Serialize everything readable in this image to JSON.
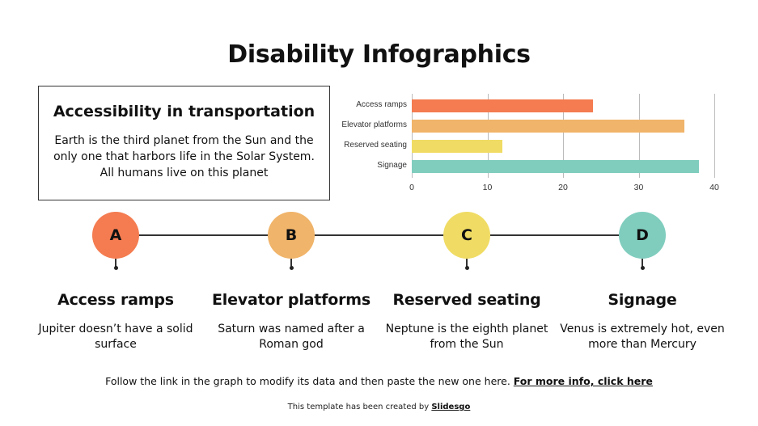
{
  "title": "Disability Infographics",
  "info_box": {
    "title": "Accessibility in transportation",
    "text": "Earth is the third planet from the Sun and the only one that harbors life in the Solar System. All humans live on this planet"
  },
  "chart_data": {
    "type": "bar",
    "orientation": "horizontal",
    "title": "",
    "xlabel": "",
    "ylabel": "",
    "categories": [
      "Access ramps",
      "Elevator platforms",
      "Reserved seating",
      "Signage"
    ],
    "values": [
      24,
      36,
      12,
      38
    ],
    "colors": [
      "#F47C50",
      "#F0B46A",
      "#F0DC64",
      "#80CDBE"
    ],
    "xlim": [
      0,
      40
    ],
    "ticks": [
      "0",
      "10",
      "20",
      "30",
      "40"
    ],
    "grid": true,
    "legend": "none"
  },
  "steps": [
    {
      "letter": "A",
      "title": "Access ramps",
      "text": "Jupiter doesn’t have a solid surface",
      "color": "#F47C50"
    },
    {
      "letter": "B",
      "title": "Elevator platforms",
      "text": "Saturn was named after a Roman god",
      "color": "#F0B46A"
    },
    {
      "letter": "C",
      "title": "Reserved seating",
      "text": "Neptune is the eighth planet from the Sun",
      "color": "#F0DC64"
    },
    {
      "letter": "D",
      "title": "Signage",
      "text": "Venus is extremely hot, even more than Mercury",
      "color": "#80CDBE"
    }
  ],
  "footer": {
    "note": "Follow the link in the graph to modify its data and then paste the new one here. ",
    "link": "For more info, click here",
    "credit_prefix": "This template has been created by ",
    "credit_link": "Slidesgo"
  }
}
